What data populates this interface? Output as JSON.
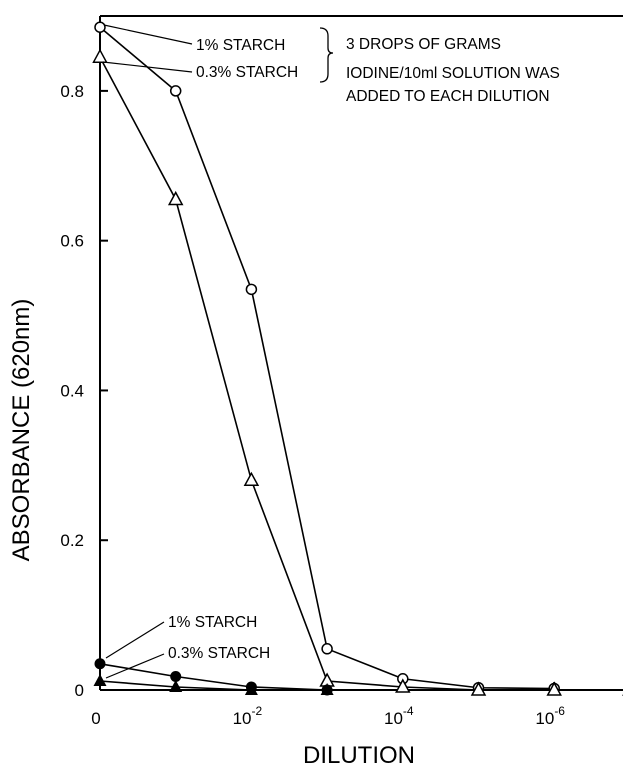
{
  "chart_data": {
    "type": "line",
    "xlabel": "DILUTION",
    "ylabel": "ABSORBANCE (620nm)",
    "x_tick_labels": [
      {
        "base": "0",
        "exp": ""
      },
      {
        "base": "10",
        "exp": "-2"
      },
      {
        "base": "10",
        "exp": "-4"
      },
      {
        "base": "10",
        "exp": "-6"
      }
    ],
    "y_tick_labels": [
      "0",
      "0.2",
      "0.4",
      "0.6",
      "0.8"
    ],
    "ylim": [
      0,
      0.9
    ],
    "grid": false,
    "x_note": "dilution steps: 0, 10^-1 ... 10^-7",
    "series": [
      {
        "name": "1% STARCH",
        "marker": "open-circle",
        "x": [
          0,
          1,
          2,
          3,
          4,
          5,
          6
        ],
        "values": [
          0.885,
          0.8,
          0.535,
          0.055,
          0.015,
          0.003,
          0.002
        ]
      },
      {
        "name": "0.3% STARCH",
        "marker": "open-triangle",
        "x": [
          0,
          1,
          2,
          3,
          4,
          5,
          6,
          7
        ],
        "values": [
          0.845,
          0.655,
          0.28,
          0.012,
          0.004,
          0.0,
          0.0,
          0.0
        ]
      },
      {
        "name": "1% STARCH",
        "marker": "filled-circle",
        "x": [
          0,
          1,
          2,
          3
        ],
        "values": [
          0.035,
          0.018,
          0.004,
          0.0
        ]
      },
      {
        "name": "0.3% STARCH",
        "marker": "filled-triangle",
        "x": [
          0,
          1,
          2,
          3
        ],
        "values": [
          0.012,
          0.004,
          0.0,
          0.0
        ]
      }
    ],
    "annotations": {
      "legend_top": [
        "1% STARCH",
        "0.3% STARCH"
      ],
      "note_lines": [
        "3 DROPS OF GRAMS",
        "IODINE/10ml SOLUTION WAS",
        "ADDED TO EACH DILUTION"
      ],
      "legend_bottom": [
        "1% STARCH",
        "0.3% STARCH"
      ]
    }
  }
}
